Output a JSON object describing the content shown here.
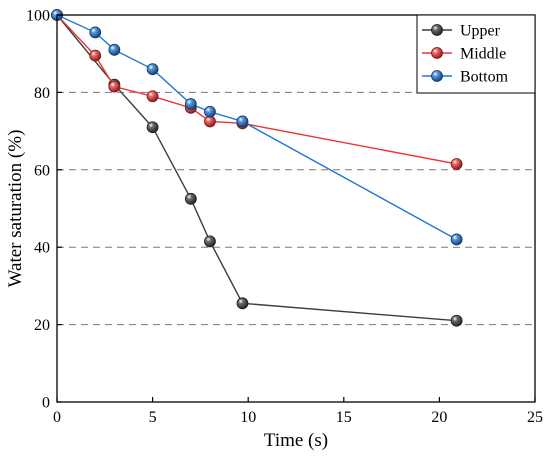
{
  "chart_data": {
    "type": "line",
    "xlabel": "Time (s)",
    "ylabel": "Water saturation (%)",
    "xlim": [
      0,
      25
    ],
    "ylim": [
      0,
      100
    ],
    "xticks": [
      0,
      5,
      10,
      15,
      20,
      25
    ],
    "yticks": [
      0,
      20,
      40,
      60,
      80,
      100
    ],
    "grid": "horizontal dashed at 20, 40, 60, 80",
    "legend_position": "top-right",
    "series": [
      {
        "name": "Upper",
        "color": "#3d3d3d",
        "x": [
          0,
          3,
          5,
          7,
          8,
          9.7,
          20.9
        ],
        "y": [
          100,
          82,
          71,
          52.5,
          41.5,
          25.5,
          21
        ]
      },
      {
        "name": "Middle",
        "color": "#ee3333",
        "x": [
          0,
          2,
          3,
          5,
          7,
          8,
          9.7,
          20.9
        ],
        "y": [
          100,
          89.5,
          81.5,
          79,
          76,
          72.5,
          72,
          61.5
        ]
      },
      {
        "name": "Bottom",
        "color": "#1f77d4",
        "x": [
          0,
          2,
          3,
          5,
          7,
          8,
          9.7,
          20.9
        ],
        "y": [
          100,
          95.5,
          91,
          86,
          77,
          75,
          72.5,
          42
        ]
      }
    ]
  }
}
